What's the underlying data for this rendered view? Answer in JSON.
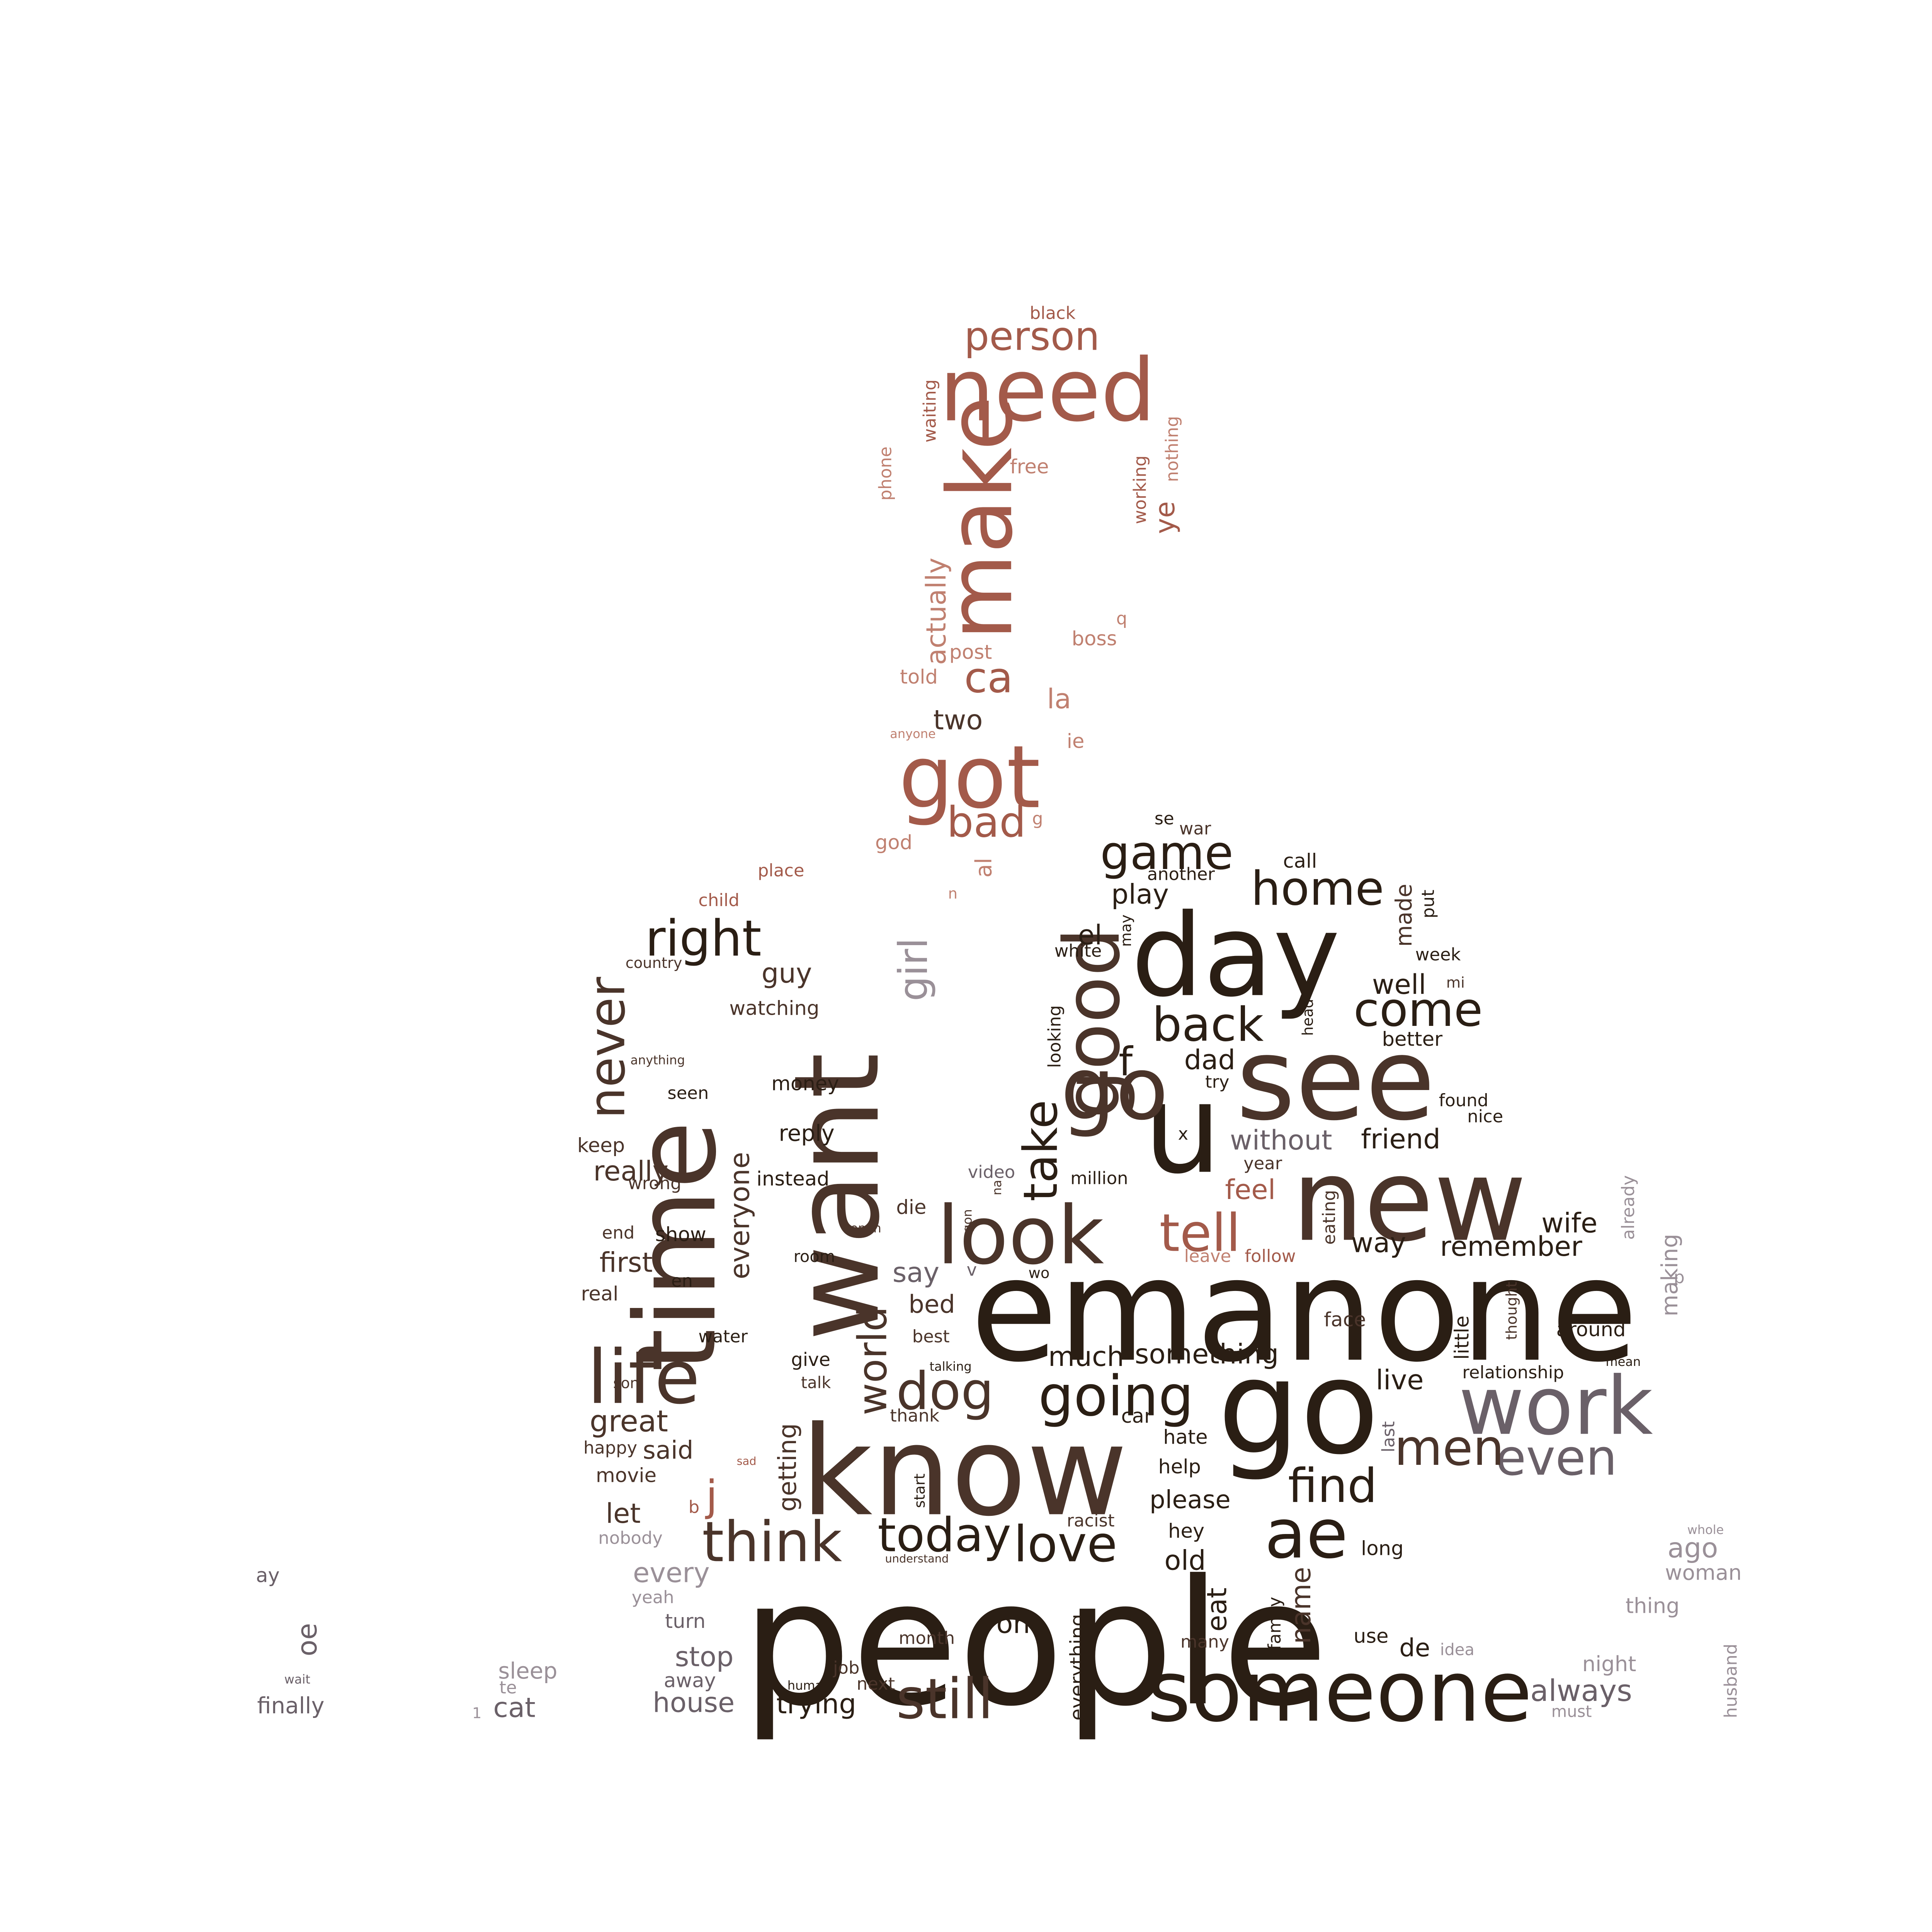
{
  "wordcloud": {
    "palette": {
      "dark": "#2a1e14",
      "brown": "#4a342a",
      "rust": "#a35a4a",
      "rose": "#c08070",
      "grey": "#6a6068",
      "lightgrey": "#9a9098"
    },
    "words": [
      {
        "text": "people",
        "color": "dark"
      },
      {
        "text": "emanone",
        "color": "dark"
      },
      {
        "text": "know",
        "color": "brown"
      },
      {
        "text": "time",
        "color": "brown"
      },
      {
        "text": "want",
        "color": "brown"
      },
      {
        "text": "day",
        "color": "dark"
      },
      {
        "text": "new",
        "color": "brown"
      },
      {
        "text": "see",
        "color": "brown"
      },
      {
        "text": "u",
        "color": "dark"
      },
      {
        "text": "go",
        "color": "dark"
      },
      {
        "text": "go",
        "color": "brown"
      },
      {
        "text": "someone",
        "color": "dark"
      },
      {
        "text": "need",
        "color": "rust"
      },
      {
        "text": "make",
        "color": "rust"
      },
      {
        "text": "got",
        "color": "rust"
      },
      {
        "text": "work",
        "color": "grey"
      },
      {
        "text": "look",
        "color": "brown"
      },
      {
        "text": "good",
        "color": "brown"
      },
      {
        "text": "life",
        "color": "brown"
      },
      {
        "text": "ae",
        "color": "dark"
      },
      {
        "text": "think",
        "color": "brown"
      },
      {
        "text": "still",
        "color": "brown"
      },
      {
        "text": "going",
        "color": "dark"
      },
      {
        "text": "love",
        "color": "dark"
      },
      {
        "text": "today",
        "color": "dark"
      },
      {
        "text": "right",
        "color": "dark"
      },
      {
        "text": "never",
        "color": "brown"
      },
      {
        "text": "game",
        "color": "dark"
      },
      {
        "text": "back",
        "color": "dark"
      },
      {
        "text": "home",
        "color": "dark"
      },
      {
        "text": "come",
        "color": "dark"
      },
      {
        "text": "even",
        "color": "grey"
      },
      {
        "text": "men",
        "color": "brown"
      },
      {
        "text": "find",
        "color": "dark"
      },
      {
        "text": "tell",
        "color": "rust"
      },
      {
        "text": "take",
        "color": "dark"
      },
      {
        "text": "dog",
        "color": "brown"
      },
      {
        "text": "world",
        "color": "brown"
      },
      {
        "text": "girl",
        "color": "lightgrey"
      },
      {
        "text": "person",
        "color": "rust"
      },
      {
        "text": "bad",
        "color": "rust"
      },
      {
        "text": "ca",
        "color": "rust"
      },
      {
        "text": "actually",
        "color": "rose"
      },
      {
        "text": "two",
        "color": "brown"
      },
      {
        "text": "la",
        "color": "rose"
      },
      {
        "text": "post",
        "color": "rose"
      },
      {
        "text": "told",
        "color": "rose"
      },
      {
        "text": "boss",
        "color": "rose"
      },
      {
        "text": "free",
        "color": "rose"
      },
      {
        "text": "ye",
        "color": "rust"
      },
      {
        "text": "nothing",
        "color": "rose"
      },
      {
        "text": "working",
        "color": "rust"
      },
      {
        "text": "waiting",
        "color": "rust"
      },
      {
        "text": "phone",
        "color": "rose"
      },
      {
        "text": "black",
        "color": "rust"
      },
      {
        "text": "anyone",
        "color": "rose"
      },
      {
        "text": "ie",
        "color": "rose"
      },
      {
        "text": "q",
        "color": "rose"
      },
      {
        "text": "god",
        "color": "rose"
      },
      {
        "text": "al",
        "color": "rose"
      },
      {
        "text": "g",
        "color": "rose"
      },
      {
        "text": "n",
        "color": "rose"
      },
      {
        "text": "place",
        "color": "rust"
      },
      {
        "text": "child",
        "color": "rust"
      },
      {
        "text": "country",
        "color": "brown"
      },
      {
        "text": "guy",
        "color": "brown"
      },
      {
        "text": "watching",
        "color": "brown"
      },
      {
        "text": "anything",
        "color": "brown"
      },
      {
        "text": "seen",
        "color": "dark"
      },
      {
        "text": "money",
        "color": "dark"
      },
      {
        "text": "keep",
        "color": "brown"
      },
      {
        "text": "reply",
        "color": "dark"
      },
      {
        "text": "really",
        "color": "brown"
      },
      {
        "text": "everyone",
        "color": "brown"
      },
      {
        "text": "instead",
        "color": "dark"
      },
      {
        "text": "wrong",
        "color": "brown"
      },
      {
        "text": "end",
        "color": "brown"
      },
      {
        "text": "show",
        "color": "dark"
      },
      {
        "text": "first",
        "color": "brown"
      },
      {
        "text": "room",
        "color": "dark"
      },
      {
        "text": "en",
        "color": "dark"
      },
      {
        "text": "real",
        "color": "brown"
      },
      {
        "text": "water",
        "color": "dark"
      },
      {
        "text": "give",
        "color": "dark"
      },
      {
        "text": "son",
        "color": "brown"
      },
      {
        "text": "talk",
        "color": "brown"
      },
      {
        "text": "great",
        "color": "brown"
      },
      {
        "text": "getting",
        "color": "brown"
      },
      {
        "text": "happy",
        "color": "brown"
      },
      {
        "text": "said",
        "color": "brown"
      },
      {
        "text": "sad",
        "color": "rust"
      },
      {
        "text": "movie",
        "color": "brown"
      },
      {
        "text": "j",
        "color": "rust"
      },
      {
        "text": "b",
        "color": "rust"
      },
      {
        "text": "let",
        "color": "brown"
      },
      {
        "text": "nobody",
        "color": "lightgrey"
      },
      {
        "text": "every",
        "color": "lightgrey"
      },
      {
        "text": "yeah",
        "color": "lightgrey"
      },
      {
        "text": "turn",
        "color": "grey"
      },
      {
        "text": "stop",
        "color": "grey"
      },
      {
        "text": "away",
        "color": "grey"
      },
      {
        "text": "house",
        "color": "grey"
      },
      {
        "text": "trying",
        "color": "dark"
      },
      {
        "text": "next",
        "color": "brown"
      },
      {
        "text": "job",
        "color": "brown"
      },
      {
        "text": "human",
        "color": "dark"
      },
      {
        "text": "month",
        "color": "brown"
      },
      {
        "text": "oh",
        "color": "dark"
      },
      {
        "text": "everything",
        "color": "dark"
      },
      {
        "text": "eat",
        "color": "dark"
      },
      {
        "text": "family",
        "color": "dark"
      },
      {
        "text": "name",
        "color": "brown"
      },
      {
        "text": "many",
        "color": "brown"
      },
      {
        "text": "use",
        "color": "dark"
      },
      {
        "text": "de",
        "color": "dark"
      },
      {
        "text": "idea",
        "color": "lightgrey"
      },
      {
        "text": "always",
        "color": "grey"
      },
      {
        "text": "must",
        "color": "lightgrey"
      },
      {
        "text": "night",
        "color": "lightgrey"
      },
      {
        "text": "thing",
        "color": "lightgrey"
      },
      {
        "text": "husband",
        "color": "lightgrey"
      },
      {
        "text": "woman",
        "color": "lightgrey"
      },
      {
        "text": "ago",
        "color": "lightgrey"
      },
      {
        "text": "whole",
        "color": "lightgrey"
      },
      {
        "text": "long",
        "color": "dark"
      },
      {
        "text": "hey",
        "color": "dark"
      },
      {
        "text": "old",
        "color": "dark"
      },
      {
        "text": "racist",
        "color": "brown"
      },
      {
        "text": "understand",
        "color": "brown"
      },
      {
        "text": "please",
        "color": "dark"
      },
      {
        "text": "help",
        "color": "dark"
      },
      {
        "text": "hate",
        "color": "dark"
      },
      {
        "text": "car",
        "color": "dark"
      },
      {
        "text": "start",
        "color": "dark"
      },
      {
        "text": "thank",
        "color": "brown"
      },
      {
        "text": "best",
        "color": "brown"
      },
      {
        "text": "talking",
        "color": "dark"
      },
      {
        "text": "much",
        "color": "dark"
      },
      {
        "text": "something",
        "color": "dark"
      },
      {
        "text": "bed",
        "color": "brown"
      },
      {
        "text": "say",
        "color": "grey"
      },
      {
        "text": "v",
        "color": "grey"
      },
      {
        "text": "wo",
        "color": "dark"
      },
      {
        "text": "open",
        "color": "brown"
      },
      {
        "text": "die",
        "color": "brown"
      },
      {
        "text": "gon",
        "color": "brown"
      },
      {
        "text": "na",
        "color": "brown"
      },
      {
        "text": "video",
        "color": "grey"
      },
      {
        "text": "million",
        "color": "dark"
      },
      {
        "text": "f",
        "color": "dark"
      },
      {
        "text": "dad",
        "color": "dark"
      },
      {
        "text": "try",
        "color": "dark"
      },
      {
        "text": "x",
        "color": "dark"
      },
      {
        "text": "without",
        "color": "grey"
      },
      {
        "text": "year",
        "color": "brown"
      },
      {
        "text": "friend",
        "color": "dark"
      },
      {
        "text": "feel",
        "color": "rust"
      },
      {
        "text": "eating",
        "color": "brown"
      },
      {
        "text": "leave",
        "color": "rose"
      },
      {
        "text": "follow",
        "color": "rust"
      },
      {
        "text": "way",
        "color": "dark"
      },
      {
        "text": "remember",
        "color": "dark"
      },
      {
        "text": "wife",
        "color": "dark"
      },
      {
        "text": "already",
        "color": "lightgrey"
      },
      {
        "text": "making",
        "color": "lightgrey"
      },
      {
        "text": "p",
        "color": "lightgrey"
      },
      {
        "text": "little",
        "color": "dark"
      },
      {
        "text": "thought",
        "color": "brown"
      },
      {
        "text": "face",
        "color": "brown"
      },
      {
        "text": "around",
        "color": "dark"
      },
      {
        "text": "mean",
        "color": "dark"
      },
      {
        "text": "relationship",
        "color": "dark"
      },
      {
        "text": "live",
        "color": "dark"
      },
      {
        "text": "last",
        "color": "grey"
      },
      {
        "text": "looking",
        "color": "dark"
      },
      {
        "text": "white",
        "color": "dark"
      },
      {
        "text": "el",
        "color": "dark"
      },
      {
        "text": "may",
        "color": "dark"
      },
      {
        "text": "play",
        "color": "dark"
      },
      {
        "text": "another",
        "color": "dark"
      },
      {
        "text": "se",
        "color": "dark"
      },
      {
        "text": "war",
        "color": "brown"
      },
      {
        "text": "call",
        "color": "dark"
      },
      {
        "text": "made",
        "color": "brown"
      },
      {
        "text": "put",
        "color": "dark"
      },
      {
        "text": "week",
        "color": "dark"
      },
      {
        "text": "well",
        "color": "dark"
      },
      {
        "text": "mi",
        "color": "brown"
      },
      {
        "text": "head",
        "color": "dark"
      },
      {
        "text": "better",
        "color": "dark"
      },
      {
        "text": "found",
        "color": "dark"
      },
      {
        "text": "nice",
        "color": "dark"
      },
      {
        "text": "ay",
        "color": "grey"
      },
      {
        "text": "oe",
        "color": "grey"
      },
      {
        "text": "wait",
        "color": "grey"
      },
      {
        "text": "finally",
        "color": "grey"
      },
      {
        "text": "sleep",
        "color": "lightgrey"
      },
      {
        "text": "te",
        "color": "lightgrey"
      },
      {
        "text": "1",
        "color": "lightgrey"
      },
      {
        "text": "cat",
        "color": "grey"
      }
    ]
  }
}
